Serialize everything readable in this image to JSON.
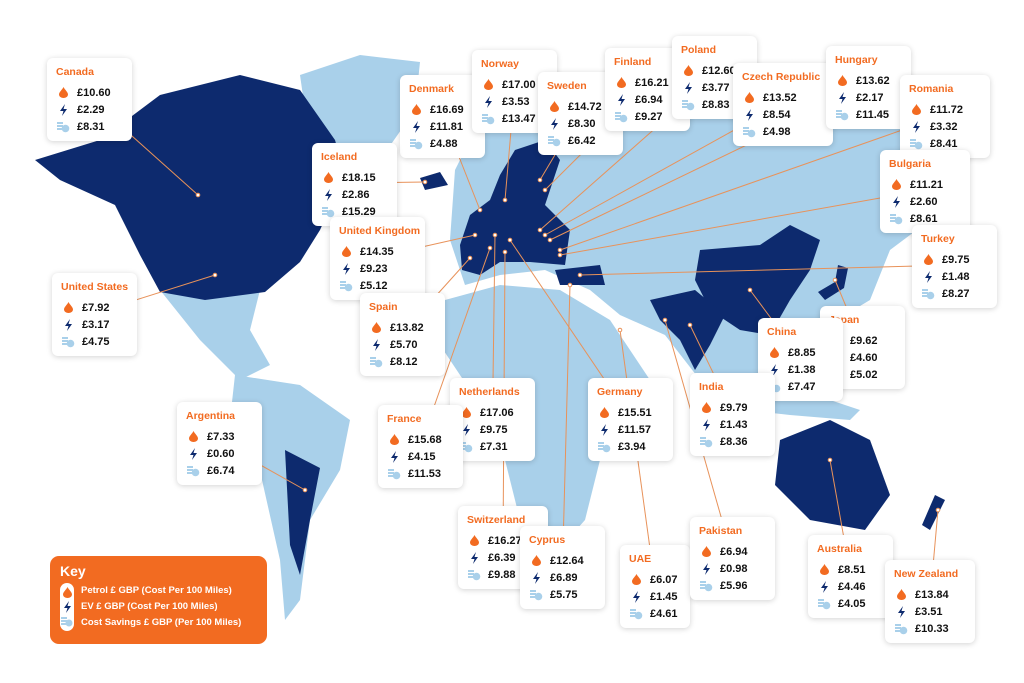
{
  "colors": {
    "accent": "#f26b21",
    "highlight_country": "#0d2a6e",
    "other_land": "#a9d0ea",
    "leader_line": "#e8925a"
  },
  "key": {
    "title": "Key",
    "items": [
      {
        "icon": "petrol-drop-icon",
        "label": "Petrol £ GBP (Cost Per 100 Miles)"
      },
      {
        "icon": "ev-lightning-icon",
        "label": "EV £ GBP (Cost Per 100 Miles)"
      },
      {
        "icon": "coins-savings-icon",
        "label": "Cost Savings £ GBP (Per 100 Miles)"
      }
    ]
  },
  "countries": [
    {
      "name": "Canada",
      "petrol": "£10.60",
      "ev": "£2.29",
      "savings": "£8.31"
    },
    {
      "name": "Denmark",
      "petrol": "£16.69",
      "ev": "£11.81",
      "savings": "£4.88"
    },
    {
      "name": "Norway",
      "petrol": "£17.00",
      "ev": "£3.53",
      "savings": "£13.47"
    },
    {
      "name": "Sweden",
      "petrol": "£14.72",
      "ev": "£8.30",
      "savings": "£6.42"
    },
    {
      "name": "Finland",
      "petrol": "£16.21",
      "ev": "£6.94",
      "savings": "£9.27"
    },
    {
      "name": "Poland",
      "petrol": "£12.60",
      "ev": "£3.77",
      "savings": "£8.83"
    },
    {
      "name": "Czech Republic",
      "petrol": "£13.52",
      "ev": "£8.54",
      "savings": "£4.98"
    },
    {
      "name": "Hungary",
      "petrol": "£13.62",
      "ev": "£2.17",
      "savings": "£11.45"
    },
    {
      "name": "Romania",
      "petrol": "£11.72",
      "ev": "£3.32",
      "savings": "£8.41"
    },
    {
      "name": "Iceland",
      "petrol": "£18.15",
      "ev": "£2.86",
      "savings": "£15.29"
    },
    {
      "name": "Bulgaria",
      "petrol": "£11.21",
      "ev": "£2.60",
      "savings": "£8.61"
    },
    {
      "name": "United Kingdom",
      "petrol": "£14.35",
      "ev": "£9.23",
      "savings": "£5.12"
    },
    {
      "name": "Turkey",
      "petrol": "£9.75",
      "ev": "£1.48",
      "savings": "£8.27"
    },
    {
      "name": "United States",
      "petrol": "£7.92",
      "ev": "£3.17",
      "savings": "£4.75"
    },
    {
      "name": "Spain",
      "petrol": "£13.82",
      "ev": "£5.70",
      "savings": "£8.12"
    },
    {
      "name": "Japan",
      "petrol": "£9.62",
      "ev": "£4.60",
      "savings": "£5.02"
    },
    {
      "name": "China",
      "petrol": "£8.85",
      "ev": "£1.38",
      "savings": "£7.47"
    },
    {
      "name": "India",
      "petrol": "£9.79",
      "ev": "£1.43",
      "savings": "£8.36"
    },
    {
      "name": "Netherlands",
      "petrol": "£17.06",
      "ev": "£9.75",
      "savings": "£7.31"
    },
    {
      "name": "Germany",
      "petrol": "£15.51",
      "ev": "£11.57",
      "savings": "£3.94"
    },
    {
      "name": "France",
      "petrol": "£15.68",
      "ev": "£4.15",
      "savings": "£11.53"
    },
    {
      "name": "Argentina",
      "petrol": "£7.33",
      "ev": "£0.60",
      "savings": "£6.74"
    },
    {
      "name": "Switzerland",
      "petrol": "£16.27",
      "ev": "£6.39",
      "savings": "£9.88"
    },
    {
      "name": "Cyprus",
      "petrol": "£12.64",
      "ev": "£6.89",
      "savings": "£5.75"
    },
    {
      "name": "UAE",
      "petrol": "£6.07",
      "ev": "£1.45",
      "savings": "£4.61"
    },
    {
      "name": "Pakistan",
      "petrol": "£6.94",
      "ev": "£0.98",
      "savings": "£5.96"
    },
    {
      "name": "Australia",
      "petrol": "£8.51",
      "ev": "£4.46",
      "savings": "£4.05"
    },
    {
      "name": "New Zealand",
      "petrol": "£13.84",
      "ev": "£3.51",
      "savings": "£10.33"
    }
  ]
}
